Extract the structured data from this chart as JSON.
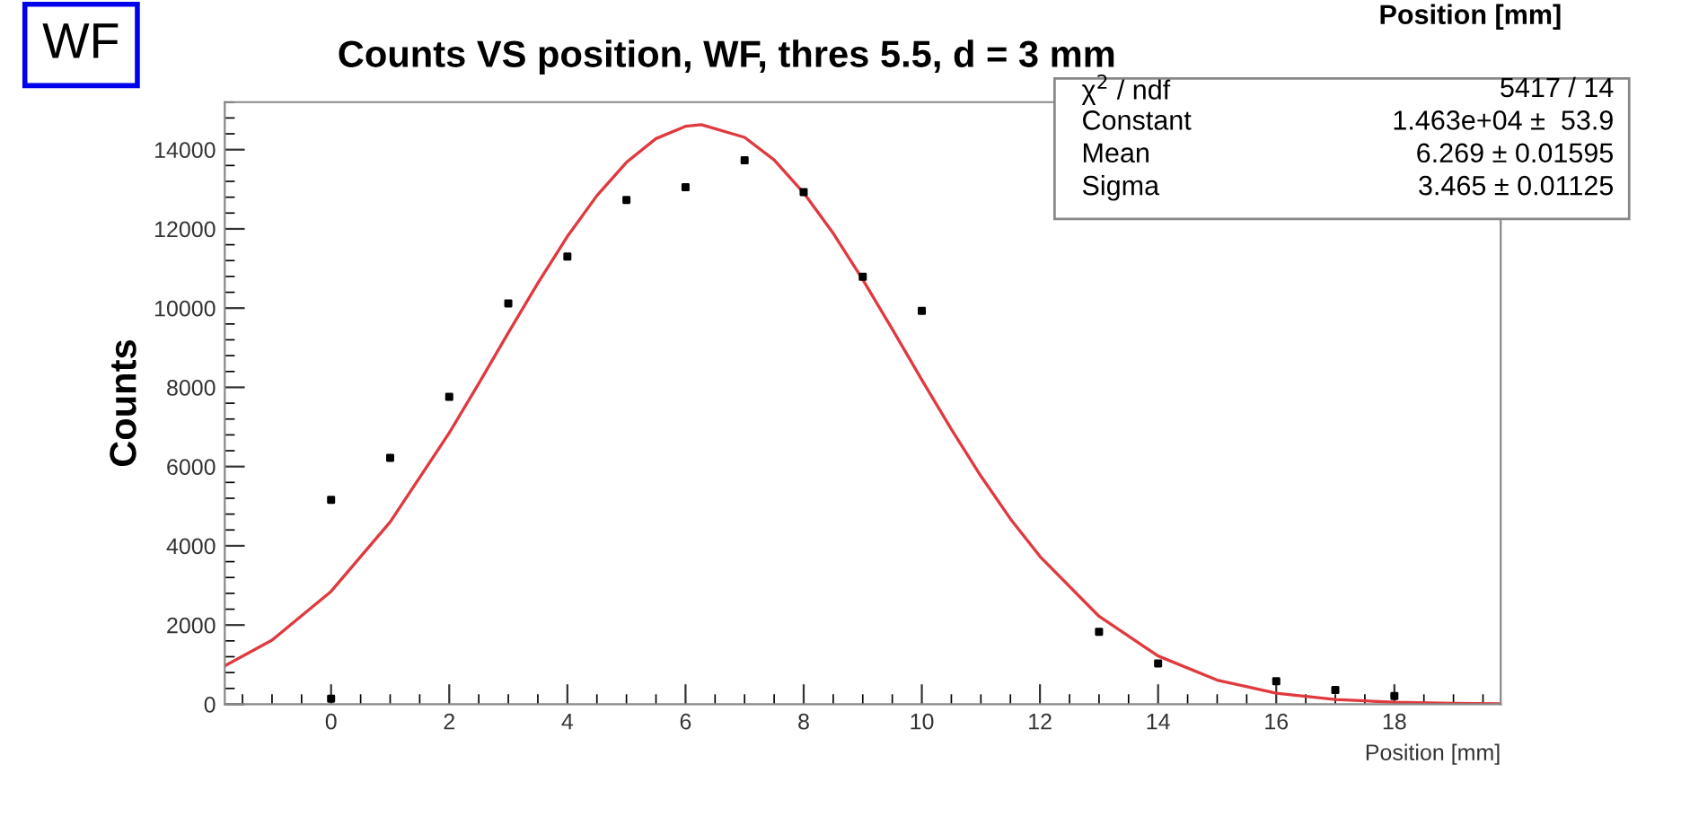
{
  "chart_data": {
    "type": "scatter",
    "title": "Counts VS position, WF, thres 5.5, d = 3 mm",
    "xlabel": "Position [mm]",
    "ylabel": "Counts",
    "annotations": [
      "WF",
      "Position [mm]",
      "χ$^{2}$ / ndf",
      "5417 / 14",
      "Constant",
      "1.463e+04 ±  53.9",
      "Mean",
      "6.269 ± 0.01595",
      "Sigma",
      "3.465 ± 0.01125"
    ],
    "xlim": [
      -1.8,
      19.8
    ],
    "xticks": [
      0,
      2,
      4,
      6,
      8,
      10,
      12,
      14,
      16,
      18
    ],
    "ylim": [
      0,
      15200
    ],
    "yticks": [
      0,
      2000,
      4000,
      6000,
      8000,
      10000,
      12000,
      14000
    ],
    "grid": false,
    "series": [
      {
        "color": "#000000",
        "marker": "square",
        "x": [
          0,
          0,
          1,
          2,
          3,
          4,
          5,
          6,
          7,
          8,
          9,
          10,
          13,
          14,
          16,
          17,
          18
        ],
        "values": [
          5160,
          140,
          6220,
          7760,
          10120,
          11300,
          12730,
          13050,
          13730,
          12930,
          10790,
          9930,
          1830,
          1030,
          580,
          360,
          210
        ]
      },
      {
        "type": "line",
        "color": "#e0393e",
        "marker": "none",
        "line_style": "solid",
        "x": [
          -1.8,
          -1,
          0,
          1,
          2,
          2.5,
          3,
          3.5,
          4,
          4.5,
          5,
          5.5,
          6,
          6.269,
          7,
          7.5,
          8,
          8.5,
          9,
          9.5,
          10,
          10.5,
          11,
          11.5,
          12,
          13,
          14,
          15,
          16,
          17,
          18,
          19,
          19.8
        ],
        "values": [
          970,
          1620,
          2850,
          4600,
          6850,
          8100,
          9380,
          10630,
          11810,
          12840,
          13680,
          14280,
          14590,
          14630,
          14310,
          13740,
          12910,
          11890,
          10720,
          9470,
          8190,
          6940,
          5760,
          4680,
          3730,
          2220,
          1220,
          610,
          280,
          120,
          50,
          20,
          10
        ]
      }
    ]
  }
}
